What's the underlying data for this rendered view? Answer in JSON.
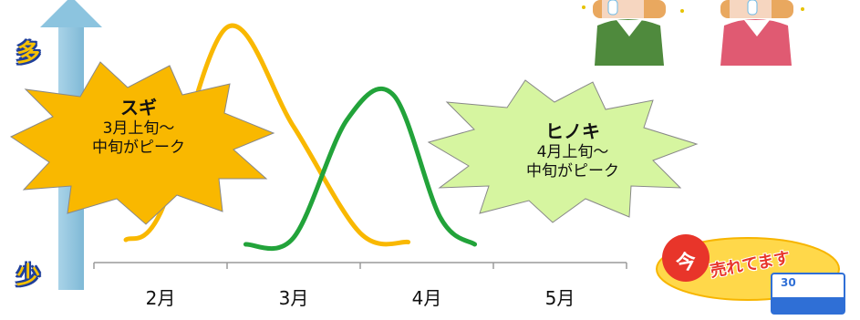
{
  "chart_data": {
    "type": "line",
    "title": "",
    "xlabel": "",
    "ylabel": "",
    "categories": [
      "2月",
      "3月",
      "4月",
      "5月"
    ],
    "x_range": [
      1.5,
      5.5
    ],
    "y_range": [
      0,
      100
    ],
    "y_axis_top_label": "多",
    "y_axis_bottom_label": "少",
    "series": [
      {
        "name": "スギ",
        "color": "#f9b800",
        "x": [
          1.74,
          2.0,
          2.5,
          3.0,
          3.5,
          3.86
        ],
        "y": [
          2,
          14,
          96,
          52,
          5,
          1
        ]
      },
      {
        "name": "ヒノキ",
        "color": "#22a33a",
        "x": [
          2.64,
          3.0,
          3.4,
          3.75,
          4.1,
          4.36
        ],
        "y": [
          0,
          3,
          55,
          66,
          12,
          0
        ]
      }
    ],
    "annotations": [
      {
        "title": "スギ",
        "line1": "3月上旬～",
        "line2": "中旬がピーク",
        "color": "#f9b800"
      },
      {
        "title": "ヒノキ",
        "line1": "4月上旬～",
        "line2": "中旬がピーク",
        "color": "#d6f5a0"
      }
    ],
    "grid": false,
    "legend": "none"
  },
  "ad": {
    "text": "売れてます",
    "kanji": "今",
    "count": "30"
  }
}
